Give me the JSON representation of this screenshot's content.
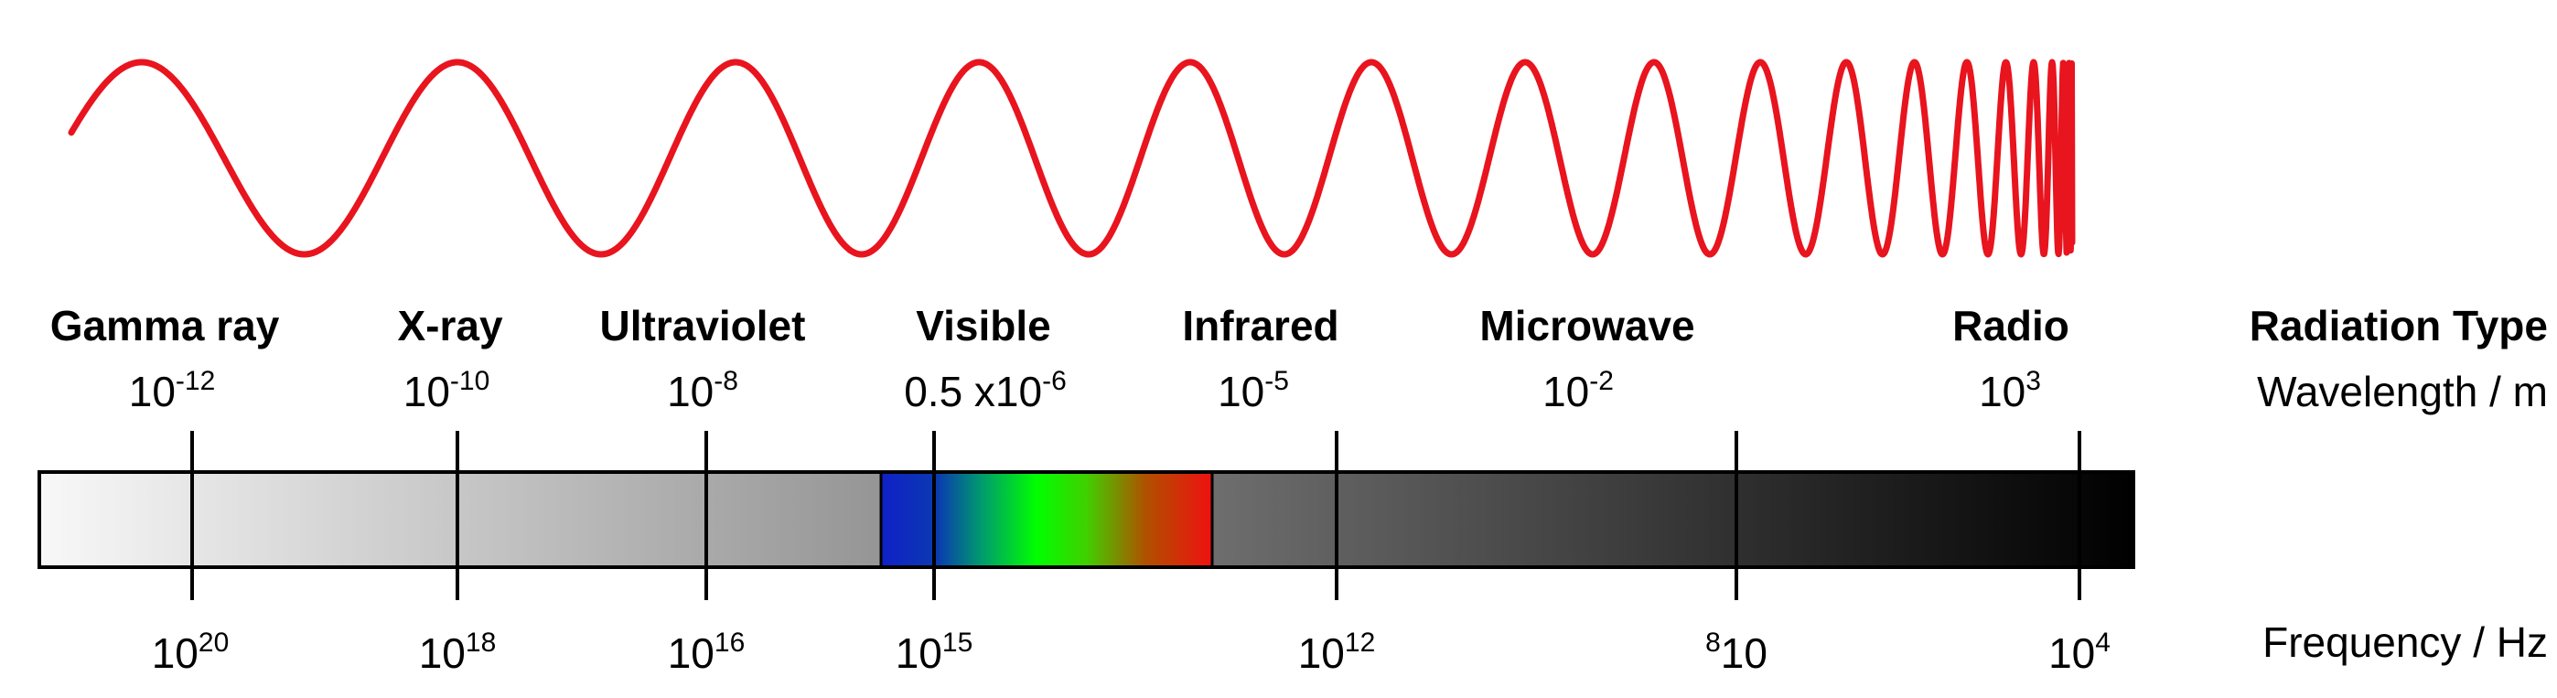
{
  "colors": {
    "wave": "#e8141e",
    "band_light": "#f7f7f7",
    "band_dark": "#000000",
    "visible_blue": "#1020c8",
    "visible_green": "#00ff00",
    "visible_red": "#f01010",
    "tick": "#000000"
  },
  "radiation_types": [
    {
      "label": "Gamma ray"
    },
    {
      "label": "X-ray"
    },
    {
      "label": "Ultraviolet"
    },
    {
      "label": "Visible"
    },
    {
      "label": "Infrared"
    },
    {
      "label": "Microwave"
    },
    {
      "label": "Radio"
    }
  ],
  "wavelengths": [
    {
      "base": "10",
      "exp": "-12"
    },
    {
      "base": "10",
      "exp": "-10"
    },
    {
      "base": "10",
      "exp": "-8"
    },
    {
      "base": "0.5 x10",
      "exp": "-6"
    },
    {
      "base": "10",
      "exp": "-5"
    },
    {
      "base": "10",
      "exp": "-2"
    },
    {
      "base": "10",
      "exp": "3"
    }
  ],
  "frequencies": [
    {
      "base": "10",
      "exp": "20"
    },
    {
      "base": "10",
      "exp": "18"
    },
    {
      "base": "10",
      "exp": "16"
    },
    {
      "base": "10",
      "exp": "15"
    },
    {
      "base": "10",
      "exp": "12"
    },
    {
      "pre": "8",
      "base": "10"
    },
    {
      "base": "10",
      "exp": "4"
    }
  ],
  "row_titles": {
    "type": "Radiation Type",
    "wavelength": "Wavelength / m",
    "frequency": "Frequency / Hz"
  }
}
